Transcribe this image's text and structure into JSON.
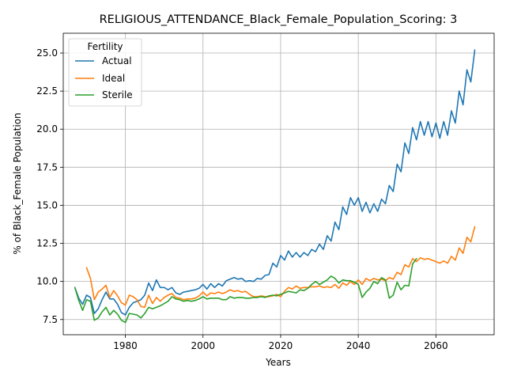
{
  "chart_data": {
    "type": "line",
    "title": "RELIGIOUS_ATTENDANCE_Black_Female_Population_Scoring: 3",
    "xlabel": "Years",
    "ylabel": "% of Black_Female Population",
    "xlim": [
      1964,
      2075
    ],
    "ylim": [
      6.5,
      26.3
    ],
    "xticks": [
      1980,
      2000,
      2020,
      2040,
      2060
    ],
    "xtick_labels": [
      "1980",
      "2000",
      "2020",
      "2040",
      "2060"
    ],
    "yticks": [
      7.5,
      10.0,
      12.5,
      15.0,
      17.5,
      20.0,
      22.5,
      25.0
    ],
    "ytick_labels": [
      "7.5",
      "10.0",
      "12.5",
      "15.0",
      "17.5",
      "20.0",
      "22.5",
      "25.0"
    ],
    "grid": true,
    "legend": {
      "title": "Fertility",
      "placement": "upper-left"
    },
    "series": [
      {
        "name": "Actual",
        "color": "#1f77b4",
        "x": [
          1967,
          1968,
          1969,
          1970,
          1971,
          1972,
          1973,
          1974,
          1975,
          1976,
          1977,
          1978,
          1979,
          1980,
          1981,
          1982,
          1983,
          1984,
          1985,
          1986,
          1987,
          1988,
          1989,
          1990,
          1991,
          1992,
          1993,
          1994,
          1995,
          1996,
          1997,
          1998,
          1999,
          2000,
          2001,
          2002,
          2003,
          2004,
          2005,
          2006,
          2007,
          2008,
          2009,
          2010,
          2011,
          2012,
          2013,
          2014,
          2015,
          2016,
          2017,
          2018,
          2019,
          2020,
          2021,
          2022,
          2023,
          2024,
          2025,
          2026,
          2027,
          2028,
          2029,
          2030,
          2031,
          2032,
          2033,
          2034,
          2035,
          2036,
          2037,
          2038,
          2039,
          2040,
          2041,
          2042,
          2043,
          2044,
          2045,
          2046,
          2047,
          2048,
          2049,
          2050,
          2051,
          2052,
          2053,
          2054,
          2055,
          2056,
          2057,
          2058,
          2059,
          2060,
          2061,
          2062,
          2063,
          2064,
          2065,
          2066,
          2067,
          2068,
          2069,
          2070
        ],
        "y": [
          9.6,
          8.9,
          8.5,
          9.1,
          8.95,
          7.9,
          8.2,
          8.8,
          9.3,
          8.85,
          8.85,
          8.5,
          7.95,
          7.8,
          8.3,
          8.6,
          8.7,
          8.8,
          9.1,
          9.9,
          9.4,
          10.1,
          9.6,
          9.6,
          9.45,
          9.6,
          9.25,
          9.15,
          9.3,
          9.35,
          9.4,
          9.45,
          9.55,
          9.8,
          9.5,
          9.85,
          9.6,
          9.85,
          9.7,
          10.05,
          10.15,
          10.25,
          10.15,
          10.2,
          10.0,
          10.05,
          10.0,
          10.2,
          10.15,
          10.4,
          10.45,
          11.2,
          10.95,
          11.7,
          11.4,
          12.0,
          11.6,
          11.9,
          11.6,
          11.9,
          11.7,
          12.1,
          11.95,
          12.45,
          12.1,
          13.0,
          12.65,
          13.9,
          13.4,
          14.9,
          14.4,
          15.5,
          15.0,
          15.5,
          14.6,
          15.2,
          14.5,
          15.1,
          14.6,
          15.4,
          15.1,
          16.3,
          15.9,
          17.7,
          17.2,
          19.1,
          18.4,
          20.1,
          19.3,
          20.5,
          19.6,
          20.5,
          19.5,
          20.4,
          19.4,
          20.5,
          19.6,
          21.2,
          20.4,
          22.5,
          21.6,
          23.9,
          23.1,
          25.2
        ]
      },
      {
        "name": "Ideal",
        "color": "#ff7f0e",
        "x": [
          1970,
          1971,
          1972,
          1973,
          1974,
          1975,
          1976,
          1977,
          1978,
          1979,
          1980,
          1981,
          1982,
          1983,
          1984,
          1985,
          1986,
          1987,
          1988,
          1989,
          1990,
          1991,
          1992,
          1993,
          1994,
          1995,
          1996,
          1997,
          1998,
          1999,
          2000,
          2001,
          2002,
          2003,
          2004,
          2005,
          2006,
          2007,
          2008,
          2009,
          2010,
          2011,
          2012,
          2013,
          2014,
          2015,
          2016,
          2017,
          2018,
          2019,
          2020,
          2021,
          2022,
          2023,
          2024,
          2025,
          2026,
          2027,
          2028,
          2029,
          2030,
          2031,
          2032,
          2033,
          2034,
          2035,
          2036,
          2037,
          2038,
          2039,
          2040,
          2041,
          2042,
          2043,
          2044,
          2045,
          2046,
          2047,
          2048,
          2049,
          2050,
          2051,
          2052,
          2053,
          2054,
          2055,
          2056,
          2057,
          2058,
          2059,
          2060,
          2061,
          2062,
          2063,
          2064,
          2065,
          2066,
          2067,
          2068,
          2069,
          2070
        ],
        "y": [
          10.9,
          10.2,
          8.8,
          9.3,
          9.5,
          9.75,
          8.95,
          9.4,
          9.05,
          8.6,
          8.45,
          9.1,
          9.0,
          8.8,
          8.35,
          8.3,
          9.1,
          8.55,
          8.95,
          8.7,
          8.95,
          9.1,
          9.2,
          8.95,
          8.9,
          8.8,
          8.85,
          8.85,
          8.9,
          9.05,
          9.3,
          9.05,
          9.25,
          9.2,
          9.3,
          9.2,
          9.3,
          9.45,
          9.35,
          9.4,
          9.3,
          9.35,
          9.15,
          9.0,
          9.0,
          9.05,
          9.0,
          9.0,
          9.05,
          9.15,
          9.0,
          9.35,
          9.6,
          9.5,
          9.7,
          9.55,
          9.6,
          9.6,
          9.65,
          9.65,
          9.7,
          9.6,
          9.65,
          9.6,
          9.8,
          9.55,
          9.9,
          9.75,
          10.0,
          9.8,
          10.1,
          9.8,
          10.2,
          10.05,
          10.2,
          10.1,
          10.15,
          10.05,
          10.25,
          10.15,
          10.6,
          10.45,
          11.1,
          10.95,
          11.5,
          11.3,
          11.55,
          11.45,
          11.5,
          11.4,
          11.3,
          11.2,
          11.35,
          11.2,
          11.65,
          11.4,
          12.2,
          11.85,
          12.9,
          12.6,
          13.6
        ]
      },
      {
        "name": "Sterile",
        "color": "#2ca02c",
        "x": [
          1967,
          1968,
          1969,
          1970,
          1971,
          1972,
          1973,
          1974,
          1975,
          1976,
          1977,
          1978,
          1979,
          1980,
          1981,
          1982,
          1983,
          1984,
          1985,
          1986,
          1987,
          1988,
          1989,
          1990,
          1991,
          1992,
          1993,
          1994,
          1995,
          1996,
          1997,
          1998,
          1999,
          2000,
          2001,
          2002,
          2003,
          2004,
          2005,
          2006,
          2007,
          2008,
          2009,
          2010,
          2011,
          2012,
          2013,
          2014,
          2015,
          2016,
          2017,
          2018,
          2019,
          2020,
          2021,
          2022,
          2023,
          2024,
          2025,
          2026,
          2027,
          2028,
          2029,
          2030,
          2031,
          2032,
          2033,
          2034,
          2035,
          2036,
          2037,
          2038,
          2039,
          2040,
          2041,
          2042,
          2043,
          2044,
          2045,
          2046,
          2047,
          2048,
          2049,
          2050,
          2051,
          2052,
          2053,
          2054,
          2055
        ],
        "y": [
          9.6,
          8.75,
          8.1,
          8.8,
          8.7,
          7.45,
          7.6,
          8.0,
          8.3,
          7.8,
          8.1,
          7.85,
          7.45,
          7.3,
          7.9,
          7.85,
          7.8,
          7.6,
          7.9,
          8.3,
          8.2,
          8.3,
          8.4,
          8.55,
          8.7,
          9.0,
          8.85,
          8.8,
          8.7,
          8.75,
          8.7,
          8.75,
          8.85,
          9.0,
          8.85,
          8.9,
          8.9,
          8.9,
          8.8,
          8.8,
          9.0,
          8.9,
          8.95,
          8.95,
          8.9,
          8.9,
          8.95,
          8.95,
          9.0,
          8.95,
          9.05,
          9.1,
          9.05,
          9.15,
          9.25,
          9.35,
          9.3,
          9.25,
          9.45,
          9.4,
          9.55,
          9.8,
          10.0,
          9.8,
          9.95,
          10.1,
          10.35,
          10.2,
          9.9,
          10.1,
          10.05,
          10.05,
          9.95,
          9.8,
          8.95,
          9.3,
          9.55,
          10.0,
          9.85,
          10.25,
          10.1,
          8.9,
          9.1,
          9.95,
          9.45,
          9.75,
          9.7,
          11.15,
          11.5
        ]
      }
    ]
  }
}
